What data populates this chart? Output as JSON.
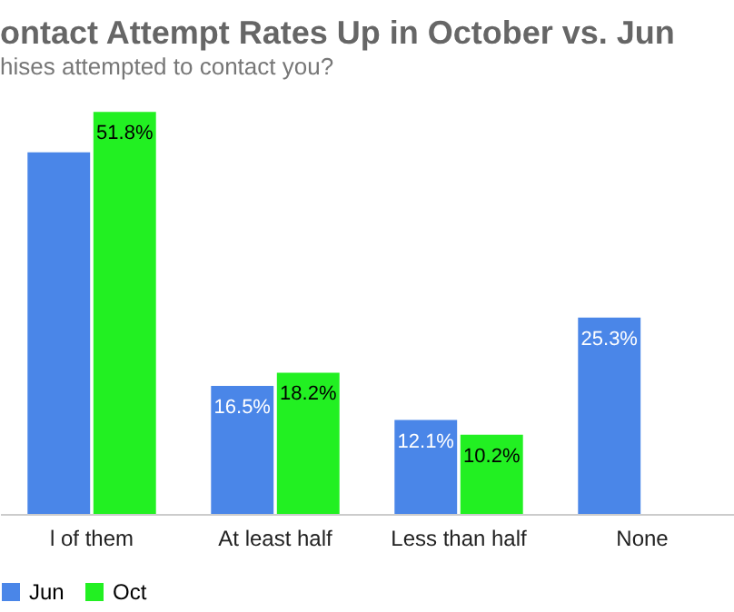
{
  "chart_data": {
    "type": "bar",
    "title": "ontact Attempt Rates Up in October vs. Jun",
    "subtitle": "hises attempted to contact you?",
    "categories": [
      "l of them",
      "At least half",
      "Less than half",
      "None"
    ],
    "series": [
      {
        "name": "Jun",
        "color": "#4a86e8",
        "values": [
          46.6,
          16.5,
          12.1,
          25.3
        ],
        "value_labels": [
          null,
          "16.5%",
          "12.1%",
          "25.3%"
        ]
      },
      {
        "name": "Oct",
        "color": "#22f022",
        "values": [
          51.8,
          18.2,
          10.2,
          null
        ],
        "value_labels": [
          "51.8%",
          "18.2%",
          "10.2%",
          null
        ]
      }
    ],
    "legend": "bottom"
  }
}
